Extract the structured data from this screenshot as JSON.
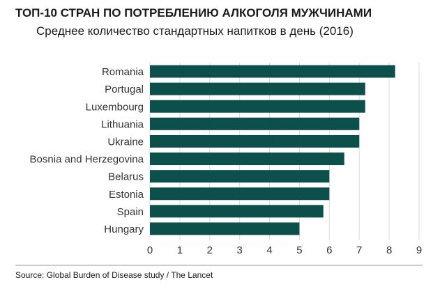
{
  "chart_data": {
    "type": "bar",
    "orientation": "horizontal",
    "title": "ТОП-10 СТРАН ПО ПОТРЕБЛЕНИЮ АЛКОГОЛЯ МУЖЧИНАМИ",
    "subtitle": "Среднее количество стандартных напитков в день (2016)",
    "categories": [
      "Romania",
      "Portugal",
      "Luxembourg",
      "Lithuania",
      "Ukraine",
      "Bosnia and Herzegovina",
      "Belarus",
      "Estonia",
      "Spain",
      "Hungary"
    ],
    "values": [
      8.2,
      7.2,
      7.2,
      7.0,
      7.0,
      6.5,
      6.0,
      6.0,
      5.8,
      5.0
    ],
    "xlim": [
      0,
      9
    ],
    "xticks": [
      0,
      1,
      2,
      3,
      4,
      5,
      6,
      7,
      8,
      9
    ],
    "xlabel": "",
    "ylabel": "",
    "grid": "vertical",
    "bar_color": "#0d4f4a",
    "grid_color": "#dcdcdc",
    "source": "Source: Global Burden of Disease study / The Lancet"
  }
}
